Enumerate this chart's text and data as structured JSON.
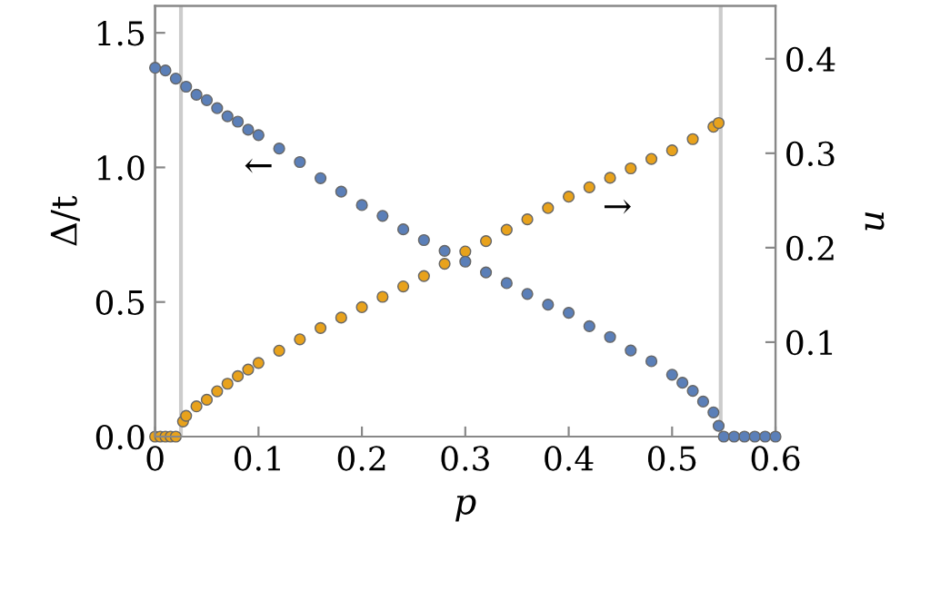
{
  "chart_data": {
    "type": "scatter",
    "xlabel": "p",
    "ylabel": "Δ/t",
    "y2label": "u",
    "xlim": [
      0,
      0.6
    ],
    "xticks": [
      0,
      0.1,
      0.2,
      0.3,
      0.4,
      0.5,
      0.6
    ],
    "ylim": [
      0,
      1.6
    ],
    "yticks": [
      {
        "value": 0,
        "label": "0.0"
      },
      {
        "value": 0.5,
        "label": "0.5"
      },
      {
        "value": 1,
        "label": "1.0"
      },
      {
        "value": 1.5,
        "label": "1.5"
      }
    ],
    "y2lim": [
      0,
      0.456
    ],
    "y2ticks": [
      0.1,
      0.2,
      0.3,
      0.4
    ],
    "marker": "circle",
    "grid": false,
    "ref_lines": [
      {
        "axis": "x",
        "value": 0.025,
        "color": "#cccccc"
      },
      {
        "axis": "x",
        "value": 0.547,
        "color": "#cccccc"
      }
    ],
    "annotations": [
      "←",
      "→"
    ],
    "series": [
      {
        "color": "#e8a21c",
        "axis": "y2",
        "x": [
          0,
          0.005,
          0.01,
          0.015,
          0.02,
          0.027,
          0.03,
          0.04,
          0.05,
          0.06,
          0.07,
          0.08,
          0.09,
          0.1,
          0.12,
          0.14,
          0.16,
          0.18,
          0.2,
          0.22,
          0.24,
          0.26,
          0.28,
          0.3,
          0.32,
          0.34,
          0.36,
          0.38,
          0.4,
          0.42,
          0.44,
          0.46,
          0.48,
          0.5,
          0.52,
          0.54,
          0.545
        ],
        "values": [
          0,
          0,
          0,
          0,
          0,
          0.016,
          0.022,
          0.032,
          0.039,
          0.048,
          0.056,
          0.064,
          0.071,
          0.078,
          0.091,
          0.103,
          0.115,
          0.126,
          0.137,
          0.148,
          0.159,
          0.17,
          0.183,
          0.196,
          0.207,
          0.219,
          0.23,
          0.242,
          0.254,
          0.264,
          0.274,
          0.284,
          0.294,
          0.303,
          0.315,
          0.328,
          0.332
        ]
      },
      {
        "color": "#5b7fb8",
        "x": [
          0,
          0.01,
          0.02,
          0.03,
          0.04,
          0.05,
          0.06,
          0.07,
          0.08,
          0.09,
          0.1,
          0.12,
          0.14,
          0.16,
          0.18,
          0.2,
          0.22,
          0.24,
          0.26,
          0.28,
          0.3,
          0.32,
          0.34,
          0.36,
          0.38,
          0.4,
          0.42,
          0.44,
          0.46,
          0.48,
          0.5,
          0.51,
          0.52,
          0.53,
          0.54,
          0.545,
          0.55,
          0.56,
          0.57,
          0.58,
          0.59,
          0.6
        ],
        "values": [
          1.37,
          1.36,
          1.33,
          1.3,
          1.27,
          1.25,
          1.22,
          1.19,
          1.17,
          1.14,
          1.12,
          1.07,
          1.02,
          0.96,
          0.91,
          0.86,
          0.82,
          0.77,
          0.73,
          0.69,
          0.65,
          0.61,
          0.57,
          0.53,
          0.49,
          0.46,
          0.41,
          0.37,
          0.32,
          0.28,
          0.23,
          0.2,
          0.17,
          0.13,
          0.09,
          0.04,
          0,
          0,
          0,
          0,
          0,
          0
        ]
      }
    ]
  }
}
